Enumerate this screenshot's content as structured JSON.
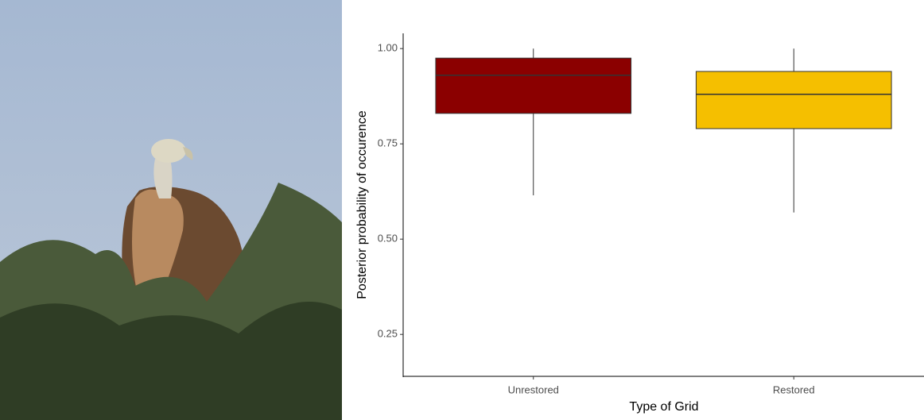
{
  "chart_data": {
    "type": "box",
    "x_label": "Type of Grid",
    "y_label": "Posterior probability of occurence",
    "categories": [
      "Unrestored",
      "Restored"
    ],
    "boxes": [
      {
        "low": 0.615,
        "q1": 0.83,
        "median": 0.93,
        "q3": 0.975,
        "high": 1.0,
        "color": "#8b0000"
      },
      {
        "low": 0.57,
        "q1": 0.79,
        "median": 0.88,
        "q3": 0.94,
        "high": 1.0,
        "color": "#f5bf00"
      }
    ],
    "ylim": [
      0.14,
      1.04
    ],
    "yticks": [
      {
        "value": 0.25,
        "label": "0.25"
      },
      {
        "value": 0.5,
        "label": "0.50"
      },
      {
        "value": 0.75,
        "label": "0.75"
      },
      {
        "value": 1,
        "label": "1.00"
      }
    ],
    "grid": false
  }
}
